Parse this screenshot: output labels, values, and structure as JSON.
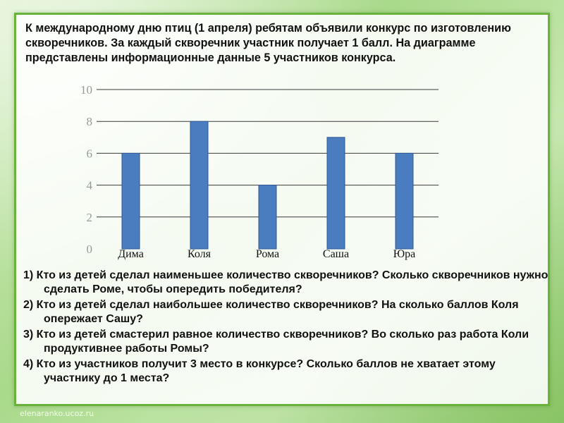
{
  "slide": {
    "intro": "К международному дню птиц (1 апреля) ребятам объявили конкурс по изготовлению скворечников. За каждый скворечник участник получает 1 балл. На диаграмме представлены информационные данные 5 участников конкурса.",
    "questions": [
      "1) Кто из детей сделал наименьшее количество скворечников? Сколько скворечников  нужно сделать Роме, чтобы опередить победителя?",
      "2) Кто из детей сделал наибольшее количество скворечников? На сколько баллов Коля опережает Сашу?",
      "3) Кто из детей смастерил равное количество скворечников? Во сколько раз работа Коли продуктивнее работы Ромы?",
      "4) Кто из участников получит 3 место в конкурсе? Сколько баллов не хватает этому участнику до 1 места?"
    ],
    "site": "elenaranko.ucoz.ru"
  },
  "colors": {
    "bar": "#4a7cc0",
    "bar_edge": "#2f5a99",
    "grid": "#3a3a3a",
    "border": "#69b33c"
  },
  "chart_data": {
    "type": "bar",
    "categories": [
      "Дима",
      "Коля",
      "Рома",
      "Саша",
      "Юра"
    ],
    "values": [
      6,
      8,
      4,
      7,
      6
    ],
    "yticks": [
      0,
      2,
      4,
      6,
      8,
      10
    ],
    "ylim": [
      0,
      10
    ],
    "grid": true,
    "legend": "none"
  }
}
